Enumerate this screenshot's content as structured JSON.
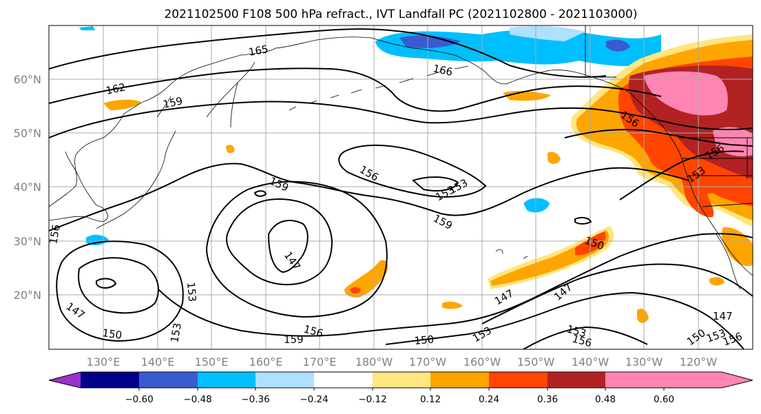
{
  "title": "2021102500 F108 500 hPa refract., IVT Landfall PC (2021102800 - 2021103000)",
  "lat_labels": [
    "60°N",
    "50°N",
    "40°N",
    "30°N",
    "20°N"
  ],
  "lon_labels": [
    "130°E",
    "140°E",
    "150°E",
    "160°E",
    "170°E",
    "180°W",
    "170°W",
    "160°W",
    "150°W",
    "140°W",
    "130°W",
    "120°W"
  ],
  "colorbar": {
    "tick_labels": [
      "−0.60",
      "−0.48",
      "−0.36",
      "−0.24",
      "−0.12",
      "0.12",
      "0.24",
      "0.36",
      "0.48",
      "0.60"
    ],
    "colors": [
      "#9932cc",
      "#00008b",
      "#3a5bd0",
      "#00bfff",
      "#aee0ff",
      "#ffffff",
      "#ffe680",
      "#ffa500",
      "#ff4500",
      "#b22222",
      "#ff85b3"
    ]
  },
  "contour_labels": [
    "165",
    "166",
    "162",
    "159",
    "156",
    "153",
    "159",
    "156",
    "153",
    "159",
    "150",
    "147",
    "156",
    "147",
    "153",
    "150",
    "147",
    "153",
    "156",
    "159",
    "150",
    "153",
    "147",
    "153",
    "156",
    "147",
    "150",
    "153",
    "156",
    "156",
    "153"
  ]
}
